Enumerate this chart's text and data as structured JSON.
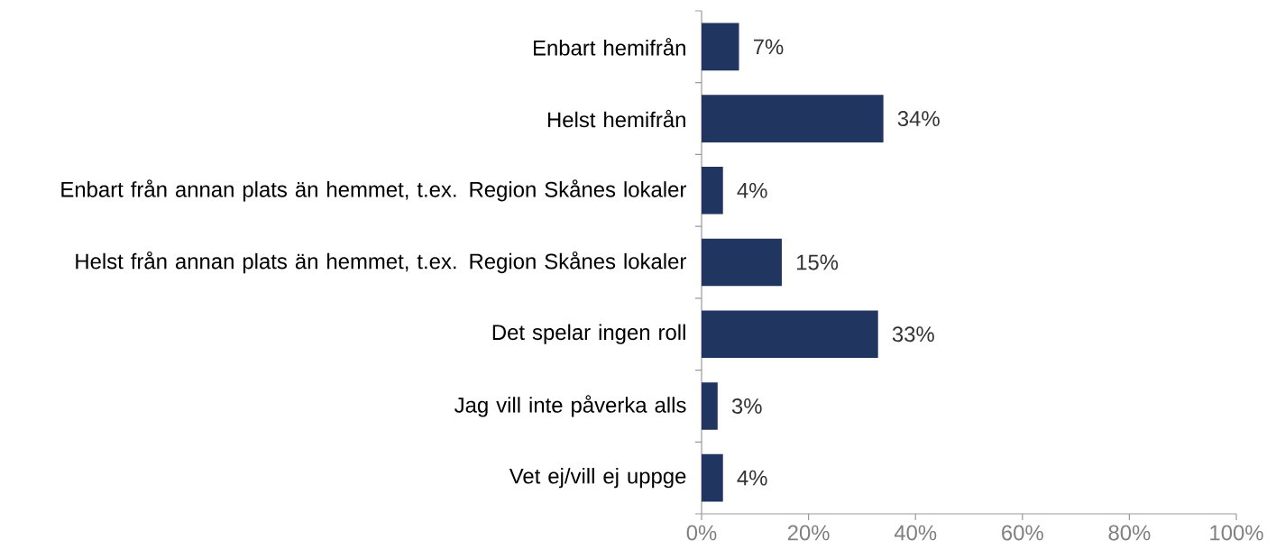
{
  "chart_data": {
    "type": "bar",
    "orientation": "horizontal",
    "categories": [
      "Enbart hemifrån",
      "Helst hemifrån",
      "Enbart från annan plats än hemmet, t.ex. Region Skånes lokaler",
      "Helst från annan plats än hemmet, t.ex. Region Skånes lokaler",
      "Det spelar ingen roll",
      "Jag vill inte påverka alls",
      "Vet ej/vill ej uppge"
    ],
    "values": [
      7,
      34,
      4,
      15,
      33,
      3,
      4
    ],
    "value_labels": [
      "7%",
      "34%",
      "4%",
      "15%",
      "33%",
      "3%",
      "4%"
    ],
    "color": "#203560",
    "xlim": [
      0,
      100
    ],
    "xticks": [
      {
        "value": 0,
        "label": "0%"
      },
      {
        "value": 20,
        "label": "20%"
      },
      {
        "value": 40,
        "label": "40%"
      },
      {
        "value": 60,
        "label": "60%"
      },
      {
        "value": 80,
        "label": "80%"
      },
      {
        "value": 100,
        "label": "100%"
      }
    ],
    "grid": false
  }
}
